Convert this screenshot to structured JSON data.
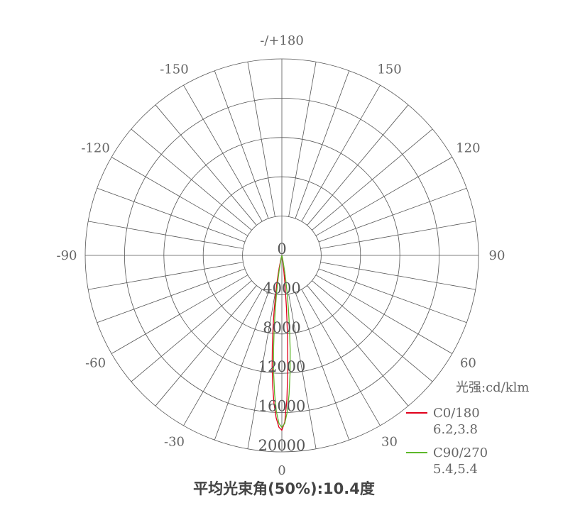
{
  "chart_data": {
    "type": "polar-line",
    "title": "平均光束角(50%):10.4度",
    "unit_label": "光强:cd/klm",
    "radial_ticks": [
      0,
      4000,
      8000,
      12000,
      16000,
      20000
    ],
    "radial_range": [
      0,
      20000
    ],
    "angle_ticks": [
      {
        "angle": 0,
        "label": "0"
      },
      {
        "angle": 30,
        "label": "30"
      },
      {
        "angle": 60,
        "label": "60"
      },
      {
        "angle": 90,
        "label": "90"
      },
      {
        "angle": 120,
        "label": "120"
      },
      {
        "angle": 150,
        "label": "150"
      },
      {
        "angle": 180,
        "label": "-/+180"
      },
      {
        "angle": -150,
        "label": "-150"
      },
      {
        "angle": -120,
        "label": "-120"
      },
      {
        "angle": -90,
        "label": "-90"
      },
      {
        "angle": -60,
        "label": "-60"
      },
      {
        "angle": -30,
        "label": "-30"
      }
    ],
    "grid": true,
    "legend_position": "bottom-right",
    "series": [
      {
        "name": "C0/180",
        "note": "6.2,3.8",
        "color": "#e0001b",
        "angles": [
          -20,
          -16,
          -14,
          -12,
          -11,
          -10,
          -9,
          -8,
          -7,
          -6,
          -5,
          -4,
          -3,
          -2,
          -1,
          0,
          1,
          2,
          3,
          4,
          5,
          6,
          7,
          8,
          10,
          12
        ],
        "values": [
          0,
          180,
          520,
          1320,
          2010,
          2940,
          4130,
          5610,
          7350,
          9290,
          11340,
          13350,
          15130,
          16550,
          17480,
          17800,
          16960,
          14680,
          11550,
          8260,
          5370,
          3170,
          1690,
          820,
          150,
          0
        ]
      },
      {
        "name": "C90/270",
        "note": "5.4,5.4",
        "color": "#5db82a",
        "angles": [
          -16,
          -14,
          -12,
          -10,
          -9,
          -8,
          -7,
          -6,
          -5,
          -4,
          -3,
          -2,
          -1,
          0,
          1,
          2,
          3,
          4,
          5,
          6,
          7,
          8,
          9,
          10,
          12,
          14,
          16
        ],
        "values": [
          0,
          170,
          570,
          1630,
          2550,
          3820,
          5460,
          7440,
          9660,
          11970,
          14120,
          15910,
          17100,
          17500,
          17100,
          15910,
          14120,
          11970,
          9660,
          7440,
          5460,
          3820,
          2550,
          1630,
          570,
          170,
          0
        ]
      }
    ]
  }
}
